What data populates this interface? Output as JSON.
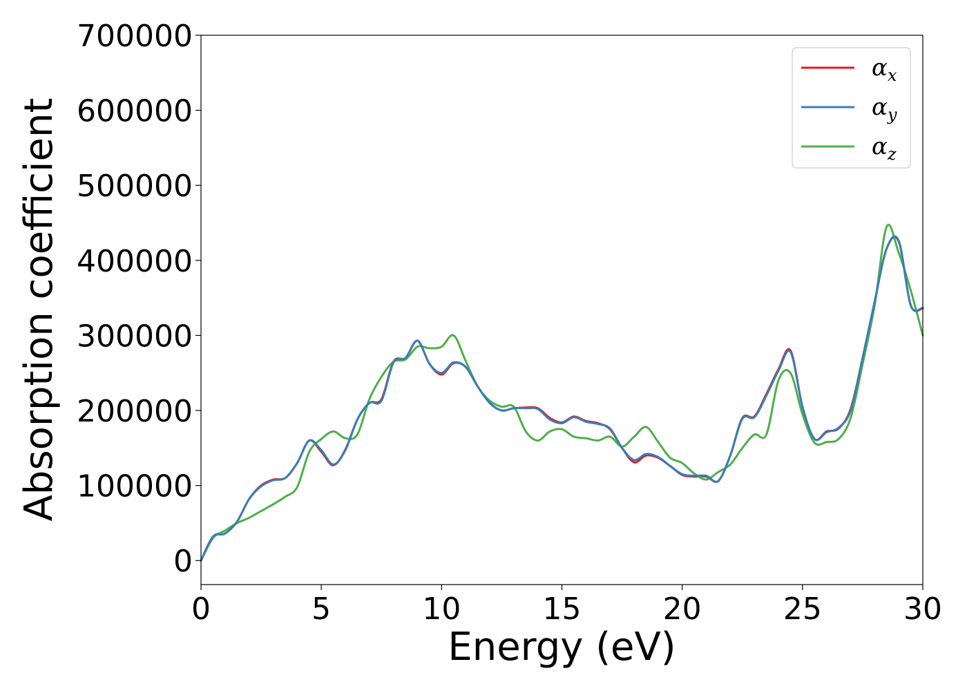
{
  "chart_data": {
    "type": "line",
    "title": "",
    "xlabel": "Energy (eV)",
    "ylabel": "Absorption coefficient",
    "xlim": [
      0,
      30
    ],
    "ylim": [
      -32000,
      700000
    ],
    "xticks": [
      0,
      5,
      10,
      15,
      20,
      25,
      30
    ],
    "xtick_labels": [
      "0",
      "5",
      "10",
      "15",
      "20",
      "25",
      "30"
    ],
    "yticks": [
      0,
      100000,
      200000,
      300000,
      400000,
      500000,
      600000,
      700000
    ],
    "ytick_labels": [
      "0",
      "100000",
      "200000",
      "300000",
      "400000",
      "500000",
      "600000",
      "700000"
    ],
    "grid": false,
    "legend_position": "top-right",
    "x": [
      0,
      0.5,
      1,
      1.5,
      2,
      2.5,
      3,
      3.5,
      4,
      4.5,
      5,
      5.5,
      6,
      6.5,
      7,
      7.5,
      8,
      8.5,
      9,
      9.5,
      10,
      10.5,
      11,
      11.5,
      12,
      12.5,
      13,
      13.5,
      14,
      14.5,
      15,
      15.5,
      16,
      16.5,
      17,
      17.5,
      18,
      18.5,
      19,
      19.5,
      20,
      20.5,
      21,
      21.5,
      22,
      22.5,
      23,
      23.5,
      24,
      24.5,
      25,
      25.5,
      26,
      26.5,
      27,
      27.5,
      28,
      28.5,
      29,
      29.5,
      30
    ],
    "series": [
      {
        "name": "α",
        "sub": "x",
        "color": "#e41a1c",
        "values": [
          0,
          32000,
          36000,
          52000,
          82000,
          100000,
          108000,
          110000,
          130000,
          160000,
          145000,
          127000,
          148000,
          188000,
          210000,
          215000,
          265000,
          270000,
          293000,
          262000,
          248000,
          263000,
          258000,
          232000,
          210000,
          200000,
          203000,
          204000,
          203000,
          190000,
          184000,
          192000,
          186000,
          183000,
          175000,
          150000,
          131000,
          140000,
          137000,
          126000,
          114000,
          112000,
          112000,
          106000,
          140000,
          190000,
          192000,
          222000,
          255000,
          280000,
          205000,
          162000,
          172000,
          176000,
          202000,
          270000,
          345000,
          416000,
          425000,
          340000,
          336000
        ]
      },
      {
        "name": "α",
        "sub": "y",
        "color": "#377eb8",
        "values": [
          0,
          32000,
          36000,
          52000,
          82000,
          99000,
          107000,
          110000,
          130000,
          160000,
          147000,
          128000,
          147000,
          188000,
          210000,
          213000,
          264000,
          270000,
          293000,
          262000,
          250000,
          264000,
          258000,
          232000,
          210000,
          200000,
          203000,
          203000,
          202000,
          188000,
          183000,
          191000,
          185000,
          182000,
          176000,
          150000,
          134000,
          142000,
          138000,
          126000,
          115000,
          113000,
          113000,
          106000,
          140000,
          189000,
          191000,
          220000,
          253000,
          278000,
          205000,
          162000,
          171000,
          177000,
          200000,
          270000,
          345000,
          416000,
          426000,
          340000,
          337000
        ]
      },
      {
        "name": "α",
        "sub": "z",
        "color": "#4daf4a",
        "values": [
          0,
          30000,
          40000,
          50000,
          57000,
          66000,
          75000,
          85000,
          98000,
          145000,
          162000,
          172000,
          163000,
          168000,
          215000,
          245000,
          265000,
          268000,
          285000,
          283000,
          285000,
          300000,
          266000,
          232000,
          213000,
          205000,
          205000,
          172000,
          160000,
          172000,
          175000,
          165000,
          163000,
          160000,
          165000,
          152000,
          165000,
          178000,
          158000,
          137000,
          130000,
          116000,
          108000,
          118000,
          128000,
          150000,
          168000,
          168000,
          240000,
          250000,
          195000,
          157000,
          158000,
          162000,
          190000,
          262000,
          340000,
          445000,
          410000,
          360000,
          300000
        ]
      }
    ]
  }
}
